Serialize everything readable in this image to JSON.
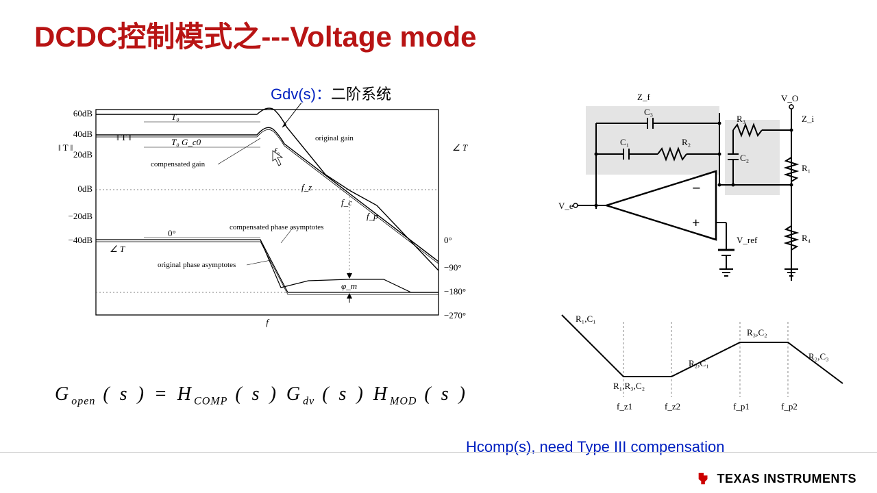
{
  "title": "DCDC控制模式之---Voltage mode",
  "gdv": {
    "sym": "Gdv(s)：",
    "cn": "二阶系统"
  },
  "bode": {
    "y_left_ticks": [
      "60dB",
      "40dB",
      "20dB",
      "0dB",
      "−20dB",
      "−40dB"
    ],
    "y_left_label": "‖ T ‖",
    "y_right_ticks": [
      "0°",
      "−90°",
      "−180°",
      "−270°"
    ],
    "y_right_label": "∠ T",
    "x_label": "f",
    "annotations": {
      "T0": "T₀",
      "T0Gc0": "T₀ G_c0",
      "mag_in": "‖ T ‖",
      "compgain": "compensated gain",
      "origgain": "original gain",
      "f0": "f₀",
      "fz": "f_z",
      "fc": "f_c",
      "fp": "f_p",
      "zero": "0°",
      "angT": "∠ T",
      "compph": "compensated phase asymptotes",
      "origph": "original phase asymptotes",
      "phm": "φ_m"
    },
    "colors": {
      "axis": "#000000",
      "grid": "#888888",
      "line": "#000000",
      "bg": "#ffffff"
    }
  },
  "circuit": {
    "labels": {
      "Zf": "Z_f",
      "Zi": "Z_i",
      "Vo": "V_O",
      "Ve": "V_e",
      "Vref": "V_ref",
      "C1": "C₁",
      "C2": "C₂",
      "C3": "C₃",
      "R1": "R₁",
      "R2": "R₂",
      "R3": "R₃",
      "R4": "R₄",
      "minus": "−",
      "plus": "+"
    },
    "colors": {
      "wire": "#000000",
      "shade": "#e4e4e4"
    }
  },
  "pz": {
    "labels": {
      "R1C1": "R₁,C₁",
      "R1R3C2": "R₁,R₃,C₂",
      "R2C1": "R₂,C₁",
      "R3C2": "R₃,C₂",
      "R2C3": "R₂,C₃",
      "fz1": "f_z1",
      "fz2": "f_z2",
      "fp1": "f_p1",
      "fp2": "f_p2"
    },
    "colors": {
      "line": "#000000",
      "dash": "#888888"
    }
  },
  "equation": {
    "text": "G<sub>open</sub> ( s ) = H<sub>COMP</sub> ( s ) G<sub>dv</sub> ( s ) H<sub>MOD</sub> ( s )"
  },
  "note": "Hcomp(s), need Type III compensation",
  "footer": {
    "vendor": "TEXAS INSTRUMENTS"
  }
}
